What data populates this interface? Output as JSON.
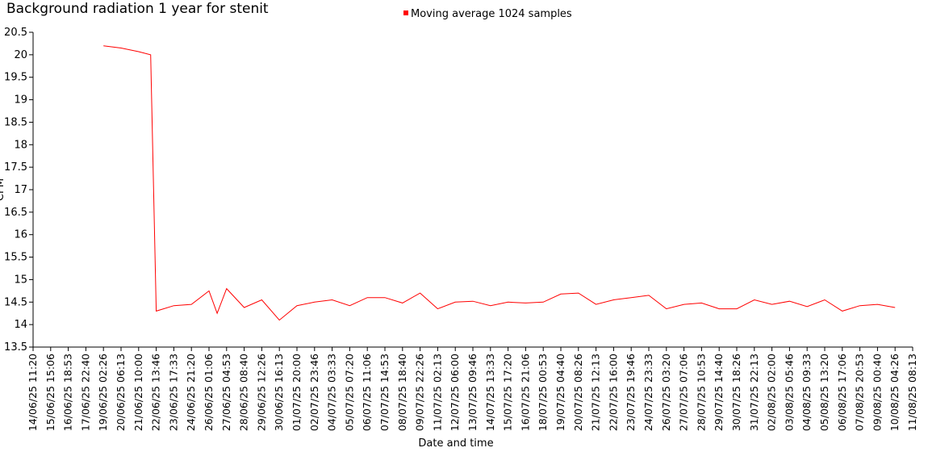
{
  "chart_data": {
    "type": "line",
    "title": "Background radiation 1 year for stenit",
    "x_label": "Date and time",
    "y_label": "CPM",
    "legend": "top",
    "x": [
      "19/06/25 02:26",
      "20/06/25 06:13",
      "21/06/25 10:00",
      "22/06/25 05:00",
      "22/06/25 13:46",
      "23/06/25 17:33",
      "24/06/25 21:20",
      "26/06/25 01:06",
      "26/06/25 14:00",
      "27/06/25 04:53",
      "28/06/25 08:40",
      "29/06/25 12:26",
      "30/06/25 16:13",
      "01/07/25 20:00",
      "02/07/25 23:46",
      "04/07/25 03:33",
      "05/07/25 07:20",
      "06/07/25 11:06",
      "07/07/25 14:53",
      "08/07/25 18:40",
      "09/07/25 22:26",
      "11/07/25 02:13",
      "12/07/25 06:00",
      "13/07/25 09:46",
      "14/07/25 13:33",
      "15/07/25 17:20",
      "16/07/25 21:06",
      "18/07/25 00:53",
      "19/07/25 04:40",
      "20/07/25 08:26",
      "21/07/25 12:13",
      "22/07/25 16:00",
      "23/07/25 19:46",
      "24/07/25 23:33",
      "26/07/25 03:20",
      "27/07/25 07:06",
      "28/07/25 10:53",
      "29/07/25 14:40",
      "30/07/25 18:26",
      "31/07/25 22:13",
      "02/08/25 02:00",
      "03/08/25 05:46",
      "04/08/25 09:33",
      "05/08/25 13:20",
      "06/08/25 17:06",
      "07/08/25 20:53",
      "09/08/25 00:40",
      "10/08/25 04:26"
    ],
    "series": [
      {
        "name": "Moving average 1024 samples",
        "color": "#ff0000",
        "values": [
          20.2,
          20.15,
          20.07,
          20.0,
          14.3,
          14.42,
          14.45,
          14.75,
          14.25,
          14.8,
          14.38,
          14.55,
          14.1,
          14.42,
          14.5,
          14.55,
          14.42,
          14.6,
          14.6,
          14.48,
          14.7,
          14.35,
          14.5,
          14.52,
          14.42,
          14.5,
          14.48,
          14.5,
          14.68,
          14.7,
          14.45,
          14.55,
          14.6,
          14.65,
          14.35,
          14.45,
          14.48,
          14.35,
          14.35,
          14.55,
          14.45,
          14.52,
          14.4,
          14.55,
          14.3,
          14.42,
          14.45,
          14.38
        ]
      }
    ],
    "xlim": [
      "14/06/25 11:20",
      "11/08/25 08:13"
    ],
    "xticks": [
      "14/06/25 11:20",
      "15/06/25 15:06",
      "16/06/25 18:53",
      "17/06/25 22:40",
      "19/06/25 02:26",
      "20/06/25 06:13",
      "21/06/25 10:00",
      "22/06/25 13:46",
      "23/06/25 17:33",
      "24/06/25 21:20",
      "26/06/25 01:06",
      "27/06/25 04:53",
      "28/06/25 08:40",
      "29/06/25 12:26",
      "30/06/25 16:13",
      "01/07/25 20:00",
      "02/07/25 23:46",
      "04/07/25 03:33",
      "05/07/25 07:20",
      "06/07/25 11:06",
      "07/07/25 14:53",
      "08/07/25 18:40",
      "09/07/25 22:26",
      "11/07/25 02:13",
      "12/07/25 06:00",
      "13/07/25 09:46",
      "14/07/25 13:33",
      "15/07/25 17:20",
      "16/07/25 21:06",
      "18/07/25 00:53",
      "19/07/25 04:40",
      "20/07/25 08:26",
      "21/07/25 12:13",
      "22/07/25 16:00",
      "23/07/25 19:46",
      "24/07/25 23:33",
      "26/07/25 03:20",
      "27/07/25 07:06",
      "28/07/25 10:53",
      "29/07/25 14:40",
      "30/07/25 18:26",
      "31/07/25 22:13",
      "02/08/25 02:00",
      "03/08/25 05:46",
      "04/08/25 09:33",
      "05/08/25 13:20",
      "06/08/25 17:06",
      "07/08/25 20:53",
      "09/08/25 00:40",
      "10/08/25 04:26",
      "11/08/25 08:13"
    ],
    "ylim": [
      13.5,
      20.5
    ],
    "yticks": [
      13.5,
      14,
      14.5,
      15,
      15.5,
      16,
      16.5,
      17,
      17.5,
      18,
      18.5,
      19,
      19.5,
      20,
      20.5
    ],
    "grid": false
  }
}
